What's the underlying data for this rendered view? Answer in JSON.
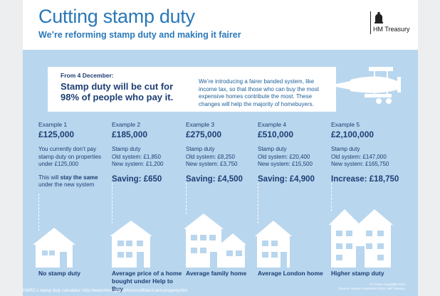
{
  "header": {
    "title": "Cutting stamp duty",
    "subtitle": "We’re reforming stamp duty and making it fairer",
    "logo_text": "HM Treasury"
  },
  "banner": {
    "from": "From 4 December:",
    "headline": "Stamp duty will be cut for 98% of people who pay it.",
    "description": "We’re introducing a fairer banded system, like income tax, so that those who can buy the most expensive homes contribute the most. These changes will help the majority of homebuyers."
  },
  "examples": [
    {
      "label": "Example 1",
      "price": "£125,000",
      "text": "You currently don’t pay stamp duty on properties under £125,000",
      "note_prefix": "This will ",
      "note_bold": "stay the same",
      "note_suffix": " under the new system",
      "caption": "No stamp duty"
    },
    {
      "label": "Example 2",
      "price": "£185,000",
      "line1": "Stamp duty",
      "line2": "Old system: £1,850",
      "line3": "New system: £1,200",
      "result": "Saving: £650",
      "caption": "Average price of a home bought under Help to Buy"
    },
    {
      "label": "Example 3",
      "price": "£275,000",
      "line1": "Stamp duty",
      "line2": "Old system: £8,250",
      "line3": "New system: £3,750",
      "result": "Saving: £4,500",
      "caption": "Average family home"
    },
    {
      "label": "Example 4",
      "price": "£510,000",
      "line1": "Stamp duty",
      "line2": "Old system: £20,400",
      "line3": "New system: £15,500",
      "result": "Saving: £4,900",
      "caption": "Average London home"
    },
    {
      "label": "Example 5",
      "price": "£2,100,000",
      "line1": "Stamp duty",
      "line2": "Old system: £147,000",
      "line3": "New system: £165,750",
      "result": "Increase: £18,750",
      "caption": "Higher stamp duty"
    }
  ],
  "footer": {
    "calculator": "HMRC’s stamp duty calculator: http://www.hmrc.gov.uk/tools/sdlt/land-and-property.htm",
    "copyright": "© Crown Copyright 2014",
    "source": "Source: Autumn Statement 2014, HM Treasury"
  },
  "colors": {
    "brand_blue": "#2a78b8",
    "dark_navy": "#1d3f73",
    "panel_blue": "#b8d6ee"
  }
}
